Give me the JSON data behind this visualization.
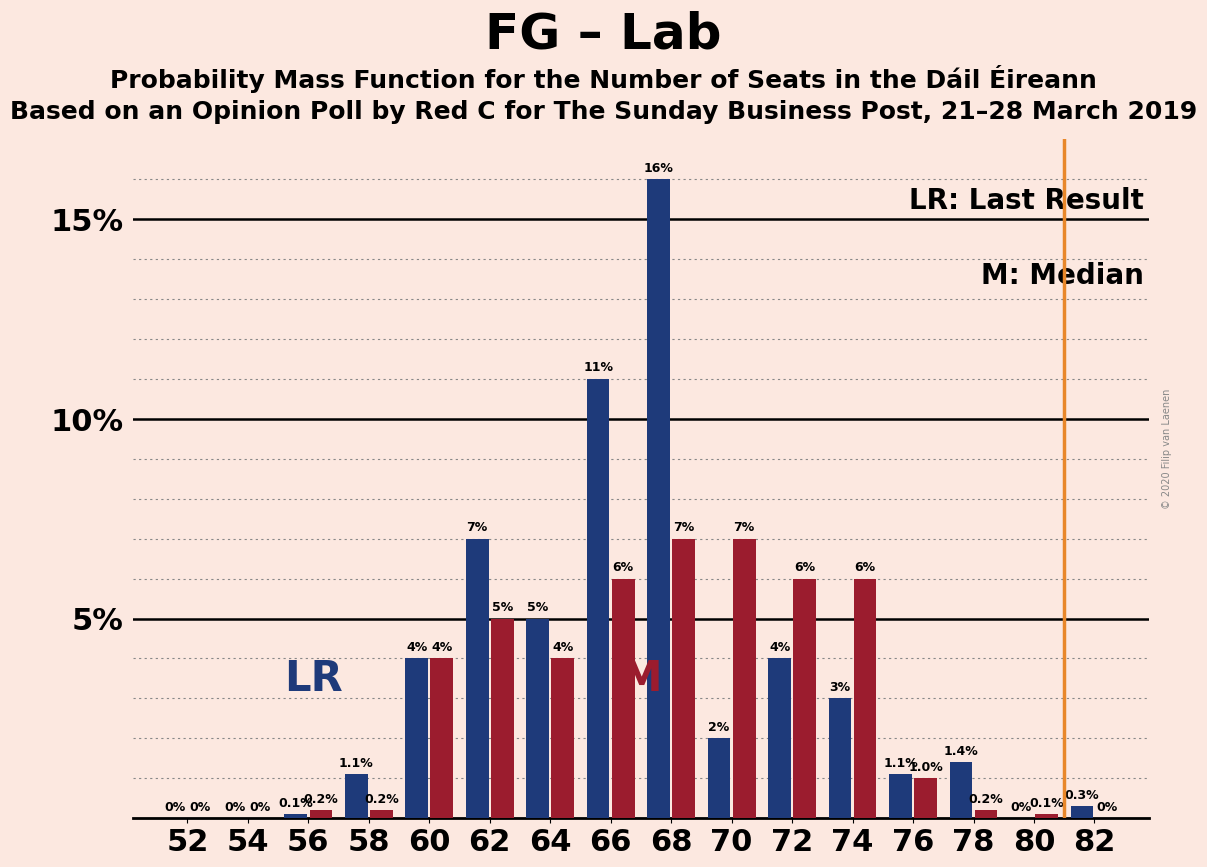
{
  "title": "FG – Lab",
  "subtitle1": "Probability Mass Function for the Number of Seats in the Dáil Éireann",
  "subtitle2": "Based on an Opinion Poll by Red C for The Sunday Business Post, 21–28 March 2019",
  "copyright": "© 2020 Filip van Laenen",
  "legend_lr": "LR: Last Result",
  "legend_m": "M: Median",
  "seats": [
    52,
    54,
    56,
    58,
    60,
    62,
    64,
    66,
    68,
    70,
    72,
    74,
    76,
    78,
    80,
    82
  ],
  "blue_values": [
    0.0,
    0.0,
    0.1,
    1.1,
    4.0,
    7.0,
    5.0,
    11.0,
    16.0,
    2.0,
    4.0,
    3.0,
    1.1,
    1.4,
    0.0,
    0.3
  ],
  "red_values": [
    0.0,
    0.0,
    0.2,
    0.2,
    4.0,
    5.0,
    4.0,
    6.0,
    7.0,
    7.0,
    6.0,
    6.0,
    1.0,
    0.2,
    0.1,
    0.0
  ],
  "blue_labels": [
    "",
    "",
    "0.1%",
    "1.1%",
    "4%",
    "7%",
    "5%",
    "11%",
    "16%",
    "2%",
    "4%",
    "3%",
    "1.1%",
    "1.4%",
    "",
    "0.3%"
  ],
  "red_labels": [
    "0%",
    "0%",
    "0.2%",
    "0.2%",
    "4%",
    "5%",
    "4%",
    "6%",
    "7%",
    "7%",
    "6%",
    "6%",
    "1.0%",
    "0.2%",
    "0.1%",
    "0%"
  ],
  "blue_zero_labels": [
    "0%",
    "0%",
    "",
    "",
    "",
    "",
    "",
    "",
    "",
    "",
    "",
    "",
    "",
    "",
    "0%",
    ""
  ],
  "blue_color": "#1e3a7a",
  "red_color": "#9b1c2e",
  "background_color": "#fce8e0",
  "lr_seat": 58,
  "median_seat": 66,
  "median_line_seat": 81,
  "ylim": [
    0,
    17
  ],
  "yticks": [
    5,
    10,
    15
  ],
  "ytick_labels": [
    "5%",
    "10%",
    "15%"
  ],
  "dotted_yticks": [
    1,
    2,
    3,
    4,
    6,
    7,
    8,
    9,
    11,
    12,
    13,
    14,
    16
  ],
  "solid_yticks": [
    5,
    10,
    15
  ],
  "title_fontsize": 36,
  "subtitle_fontsize": 18,
  "tick_fontsize": 22,
  "bar_label_fontsize": 9,
  "legend_fontsize": 20,
  "lr_fontsize": 30,
  "m_fontsize": 30,
  "orange_line_color": "#e8872a",
  "grid_color": "#888888"
}
